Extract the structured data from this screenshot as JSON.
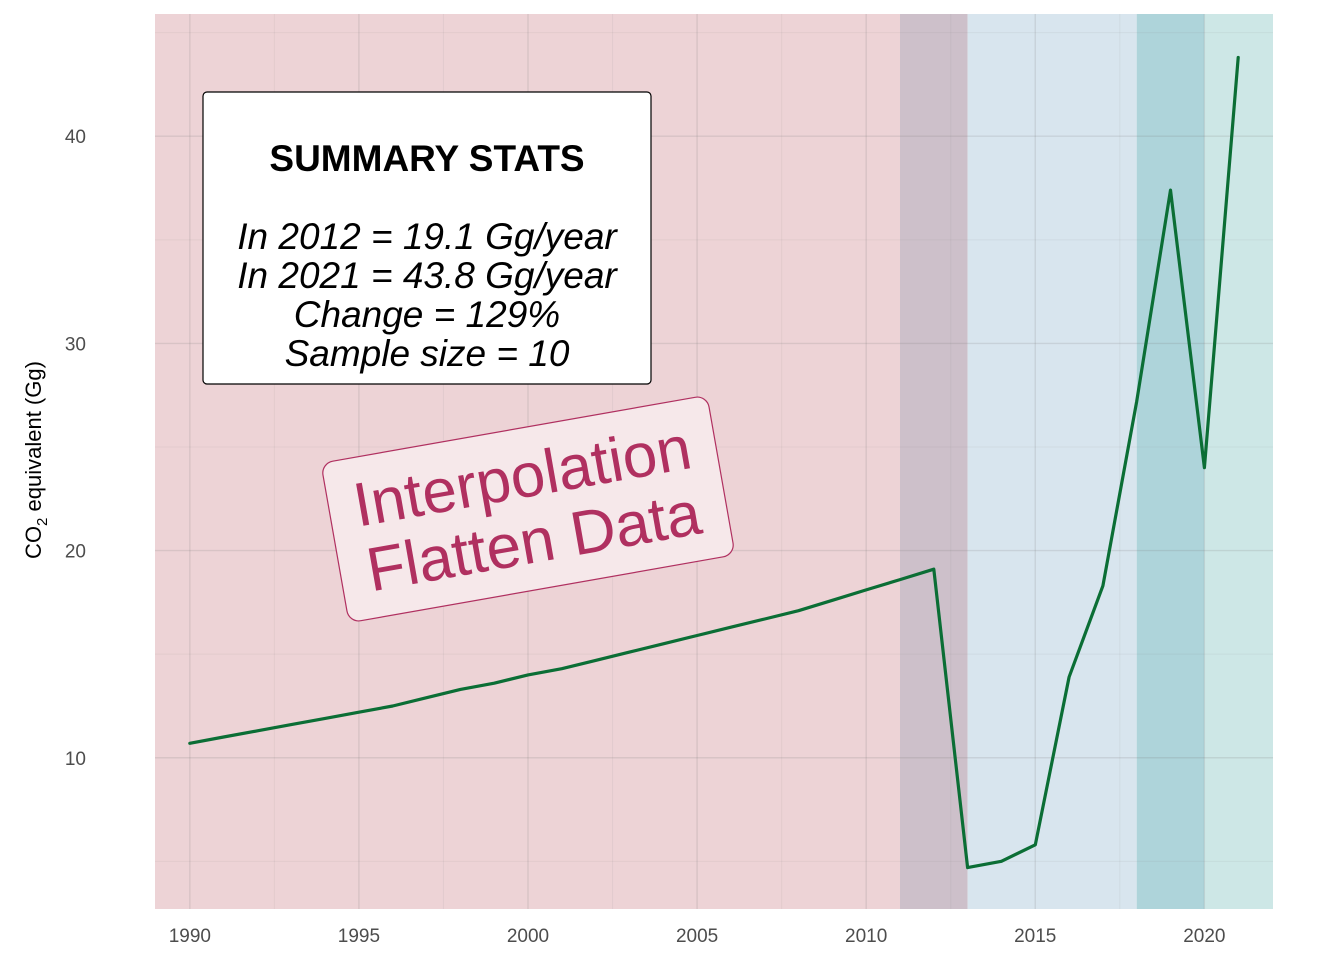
{
  "chart_data": {
    "type": "line",
    "ylabel_main": "CO",
    "ylabel_sub": "2",
    "ylabel_rest": " equivalent (Gg)",
    "xlim": [
      1988.97,
      2022.03
    ],
    "ylim": [
      2.7,
      45.9
    ],
    "x_ticks": [
      1990,
      1995,
      2000,
      2005,
      2010,
      2015,
      2020
    ],
    "y_ticks": [
      10,
      20,
      30,
      40
    ],
    "grid": true,
    "bands": [
      {
        "x0": 1988.97,
        "x1": 2011,
        "color": "#edd3d6",
        "name": "band-interpolation"
      },
      {
        "x0": 2011,
        "x1": 2013,
        "color": "#cdc0ca",
        "name": "band-overlap"
      },
      {
        "x0": 2013,
        "x1": 2018,
        "color": "#d8e5ee",
        "name": "band-measured"
      },
      {
        "x0": 2018,
        "x1": 2020,
        "color": "#aed4da",
        "name": "band-recent"
      },
      {
        "x0": 2020,
        "x1": 2022.03,
        "color": "#cde7e6",
        "name": "band-latest"
      }
    ],
    "series": [
      {
        "color": "#0b6e35",
        "x": [
          1990,
          1991,
          1992,
          1993,
          1994,
          1995,
          1996,
          1997,
          1998,
          1999,
          2000,
          2001,
          2002,
          2003,
          2004,
          2005,
          2006,
          2007,
          2008,
          2009,
          2010,
          2011,
          2012,
          2013,
          2014,
          2015,
          2016,
          2017,
          2018,
          2019,
          2020,
          2021
        ],
        "values": [
          10.7,
          11.0,
          11.3,
          11.6,
          11.9,
          12.2,
          12.5,
          12.9,
          13.3,
          13.6,
          14.0,
          14.3,
          14.7,
          15.1,
          15.5,
          15.9,
          16.3,
          16.7,
          17.1,
          17.6,
          18.1,
          18.6,
          19.1,
          4.7,
          5.0,
          5.8,
          13.9,
          18.3,
          27.2,
          37.4,
          24.0,
          43.8
        ]
      }
    ]
  },
  "stats_box": {
    "title": "SUMMARY STATS",
    "line1": "In 2012 = 19.1 Gg/year",
    "line2": "In 2021 = 43.8 Gg/year",
    "line3": "Change = 129%",
    "line4": "Sample size = 10"
  },
  "annotation": {
    "line1": "Interpolation",
    "line2": "Flatten Data",
    "color": "#b03060"
  }
}
